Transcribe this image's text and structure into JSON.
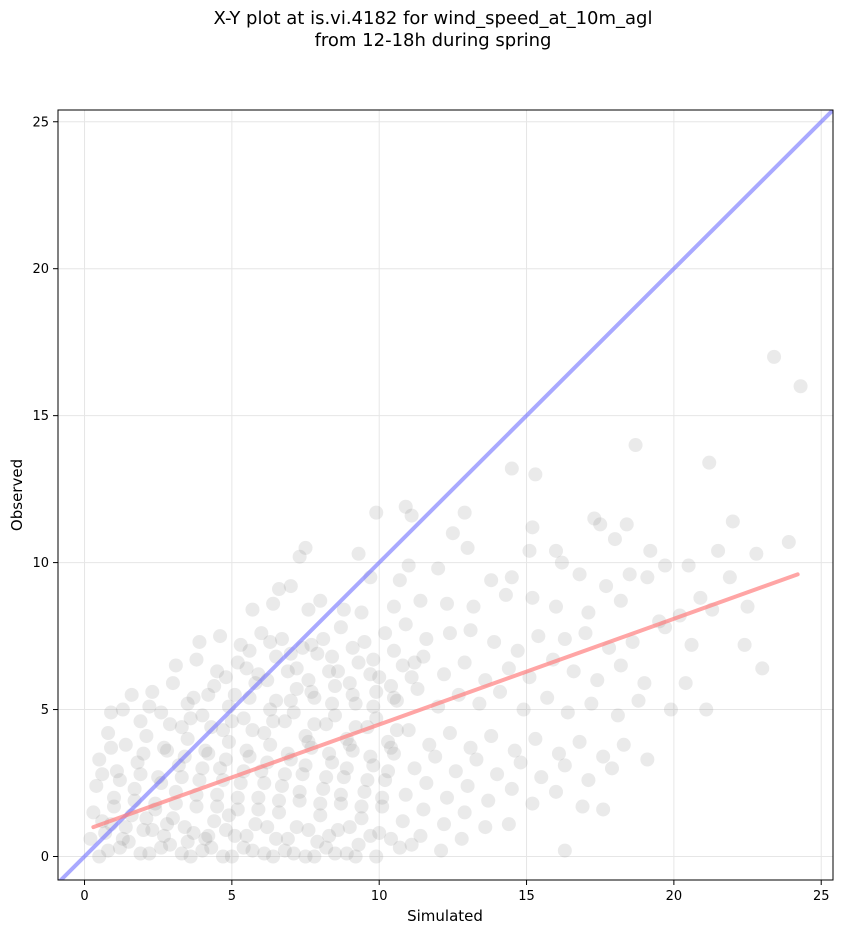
{
  "title": {
    "line1": "X-Y plot at is.vi.4182 for wind_speed_at_10m_agl",
    "line2": "from 12-18h during spring"
  },
  "chart_data": {
    "type": "scatter",
    "title": "X-Y plot at is.vi.4182 for wind_speed_at_10m_agl\nfrom 12-18h during spring",
    "xlabel": "Simulated",
    "ylabel": "Observed",
    "xlim": [
      -0.9,
      25.4
    ],
    "ylim": [
      -0.8,
      25.4
    ],
    "xticks": [
      0,
      5,
      10,
      15,
      20,
      25
    ],
    "yticks": [
      0,
      5,
      10,
      15,
      20,
      25
    ],
    "grid": true,
    "reference_line": {
      "kind": "1:1",
      "color": "#6f6fff",
      "from": [
        -0.9,
        -0.9
      ],
      "to": [
        25.4,
        25.4
      ]
    },
    "regression_line": {
      "color": "#ff7f7f",
      "from": [
        0.3,
        1.0
      ],
      "to": [
        24.2,
        9.6
      ]
    },
    "marker_color": "#808080",
    "points": [
      [
        23.4,
        17.0
      ],
      [
        24.3,
        16.0
      ],
      [
        18.7,
        14.0
      ],
      [
        14.5,
        13.2
      ],
      [
        21.2,
        13.4
      ],
      [
        15.3,
        13.0
      ],
      [
        10.9,
        11.9
      ],
      [
        12.9,
        11.7
      ],
      [
        9.9,
        11.7
      ],
      [
        22.0,
        11.4
      ],
      [
        17.3,
        11.5
      ],
      [
        15.2,
        11.2
      ],
      [
        18.4,
        11.3
      ],
      [
        12.5,
        11.0
      ],
      [
        17.5,
        11.3
      ],
      [
        11.1,
        11.6
      ],
      [
        7.5,
        10.5
      ],
      [
        7.3,
        10.2
      ],
      [
        9.3,
        10.3
      ],
      [
        13.0,
        10.5
      ],
      [
        15.1,
        10.4
      ],
      [
        16.2,
        10.0
      ],
      [
        19.2,
        10.4
      ],
      [
        16.0,
        10.4
      ],
      [
        18.0,
        10.8
      ],
      [
        20.5,
        9.9
      ],
      [
        21.5,
        10.4
      ],
      [
        22.8,
        10.3
      ],
      [
        23.9,
        10.7
      ],
      [
        19.7,
        9.9
      ],
      [
        12.0,
        9.8
      ],
      [
        11.0,
        9.9
      ],
      [
        9.7,
        9.5
      ],
      [
        10.7,
        9.4
      ],
      [
        13.8,
        9.4
      ],
      [
        14.5,
        9.5
      ],
      [
        16.8,
        9.6
      ],
      [
        17.7,
        9.2
      ],
      [
        18.5,
        9.6
      ],
      [
        19.1,
        9.5
      ],
      [
        20.9,
        8.8
      ],
      [
        21.9,
        9.5
      ],
      [
        22.5,
        8.5
      ],
      [
        6.6,
        9.1
      ],
      [
        7.0,
        9.2
      ],
      [
        8.0,
        8.7
      ],
      [
        5.7,
        8.4
      ],
      [
        6.4,
        8.6
      ],
      [
        7.6,
        8.4
      ],
      [
        8.8,
        8.4
      ],
      [
        9.4,
        8.3
      ],
      [
        10.5,
        8.5
      ],
      [
        11.4,
        8.7
      ],
      [
        12.3,
        8.6
      ],
      [
        13.2,
        8.5
      ],
      [
        14.3,
        8.9
      ],
      [
        15.2,
        8.8
      ],
      [
        16.0,
        8.5
      ],
      [
        17.1,
        8.3
      ],
      [
        18.2,
        8.7
      ],
      [
        19.5,
        8.0
      ],
      [
        20.2,
        8.2
      ],
      [
        21.3,
        8.4
      ],
      [
        3.9,
        7.3
      ],
      [
        4.6,
        7.5
      ],
      [
        5.3,
        7.2
      ],
      [
        6.0,
        7.6
      ],
      [
        6.7,
        7.4
      ],
      [
        7.4,
        7.1
      ],
      [
        8.1,
        7.4
      ],
      [
        8.7,
        7.8
      ],
      [
        9.5,
        7.3
      ],
      [
        10.2,
        7.6
      ],
      [
        10.9,
        7.9
      ],
      [
        11.6,
        7.4
      ],
      [
        12.4,
        7.6
      ],
      [
        13.1,
        7.7
      ],
      [
        13.9,
        7.3
      ],
      [
        14.7,
        7.0
      ],
      [
        15.4,
        7.5
      ],
      [
        16.3,
        7.4
      ],
      [
        17.0,
        7.6
      ],
      [
        17.8,
        7.1
      ],
      [
        18.6,
        7.3
      ],
      [
        19.7,
        7.8
      ],
      [
        20.6,
        7.2
      ],
      [
        22.4,
        7.2
      ],
      [
        23.0,
        6.4
      ],
      [
        3.1,
        6.5
      ],
      [
        3.8,
        6.7
      ],
      [
        4.5,
        6.3
      ],
      [
        5.2,
        6.6
      ],
      [
        5.9,
        6.2
      ],
      [
        6.5,
        6.8
      ],
      [
        7.2,
        6.4
      ],
      [
        7.9,
        6.9
      ],
      [
        8.6,
        6.3
      ],
      [
        9.3,
        6.6
      ],
      [
        10.0,
        6.1
      ],
      [
        10.8,
        6.5
      ],
      [
        11.5,
        6.8
      ],
      [
        12.2,
        6.2
      ],
      [
        12.9,
        6.6
      ],
      [
        13.6,
        6.0
      ],
      [
        14.4,
        6.4
      ],
      [
        15.1,
        6.1
      ],
      [
        15.9,
        6.7
      ],
      [
        16.6,
        6.3
      ],
      [
        17.4,
        6.0
      ],
      [
        18.2,
        6.5
      ],
      [
        19.0,
        5.9
      ],
      [
        20.4,
        5.9
      ],
      [
        2.3,
        5.6
      ],
      [
        3.0,
        5.9
      ],
      [
        3.7,
        5.4
      ],
      [
        4.4,
        5.8
      ],
      [
        5.1,
        5.5
      ],
      [
        5.8,
        5.9
      ],
      [
        6.5,
        5.3
      ],
      [
        7.2,
        5.7
      ],
      [
        7.8,
        5.4
      ],
      [
        8.5,
        5.8
      ],
      [
        9.2,
        5.2
      ],
      [
        9.9,
        5.6
      ],
      [
        10.6,
        5.3
      ],
      [
        11.3,
        5.7
      ],
      [
        12.0,
        5.1
      ],
      [
        12.7,
        5.5
      ],
      [
        13.4,
        5.2
      ],
      [
        14.1,
        5.6
      ],
      [
        14.9,
        5.0
      ],
      [
        15.7,
        5.4
      ],
      [
        16.4,
        4.9
      ],
      [
        17.2,
        5.2
      ],
      [
        18.1,
        4.8
      ],
      [
        18.8,
        5.3
      ],
      [
        19.9,
        5.0
      ],
      [
        21.1,
        5.0
      ],
      [
        1.3,
        5.0
      ],
      [
        1.9,
        4.6
      ],
      [
        2.6,
        4.9
      ],
      [
        3.3,
        4.4
      ],
      [
        4.0,
        4.8
      ],
      [
        4.7,
        4.3
      ],
      [
        5.4,
        4.7
      ],
      [
        6.1,
        4.2
      ],
      [
        6.8,
        4.6
      ],
      [
        7.5,
        4.1
      ],
      [
        8.2,
        4.5
      ],
      [
        8.9,
        4.0
      ],
      [
        9.6,
        4.4
      ],
      [
        10.3,
        3.9
      ],
      [
        11.0,
        4.3
      ],
      [
        11.7,
        3.8
      ],
      [
        12.4,
        4.2
      ],
      [
        13.1,
        3.7
      ],
      [
        13.8,
        4.1
      ],
      [
        14.6,
        3.6
      ],
      [
        15.3,
        4.0
      ],
      [
        16.1,
        3.5
      ],
      [
        16.8,
        3.9
      ],
      [
        17.6,
        3.4
      ],
      [
        18.3,
        3.8
      ],
      [
        19.1,
        3.3
      ],
      [
        0.8,
        4.2
      ],
      [
        1.4,
        3.8
      ],
      [
        2.1,
        4.1
      ],
      [
        2.8,
        3.6
      ],
      [
        3.5,
        4.0
      ],
      [
        4.2,
        3.5
      ],
      [
        4.9,
        3.9
      ],
      [
        5.6,
        3.4
      ],
      [
        6.3,
        3.8
      ],
      [
        7.0,
        3.3
      ],
      [
        7.7,
        3.7
      ],
      [
        8.4,
        3.2
      ],
      [
        9.1,
        3.6
      ],
      [
        9.8,
        3.1
      ],
      [
        10.5,
        3.5
      ],
      [
        11.2,
        3.0
      ],
      [
        11.9,
        3.4
      ],
      [
        12.6,
        2.9
      ],
      [
        13.3,
        3.3
      ],
      [
        14.0,
        2.8
      ],
      [
        14.8,
        3.2
      ],
      [
        15.5,
        2.7
      ],
      [
        16.3,
        3.1
      ],
      [
        17.1,
        2.6
      ],
      [
        17.9,
        3.0
      ],
      [
        0.5,
        3.3
      ],
      [
        1.1,
        2.9
      ],
      [
        1.8,
        3.2
      ],
      [
        2.5,
        2.7
      ],
      [
        3.2,
        3.1
      ],
      [
        3.9,
        2.6
      ],
      [
        4.6,
        3.0
      ],
      [
        5.3,
        2.5
      ],
      [
        6.0,
        2.9
      ],
      [
        6.7,
        2.4
      ],
      [
        7.4,
        2.8
      ],
      [
        8.1,
        2.3
      ],
      [
        8.8,
        2.7
      ],
      [
        9.5,
        2.2
      ],
      [
        10.2,
        2.6
      ],
      [
        10.9,
        2.1
      ],
      [
        11.6,
        2.5
      ],
      [
        12.3,
        2.0
      ],
      [
        13.0,
        2.4
      ],
      [
        13.7,
        1.9
      ],
      [
        14.5,
        2.3
      ],
      [
        15.2,
        1.8
      ],
      [
        16.0,
        2.2
      ],
      [
        16.9,
        1.7
      ],
      [
        17.6,
        1.6
      ],
      [
        0.4,
        2.4
      ],
      [
        1.0,
        2.0
      ],
      [
        1.7,
        2.3
      ],
      [
        2.4,
        1.8
      ],
      [
        3.1,
        2.2
      ],
      [
        3.8,
        1.7
      ],
      [
        4.5,
        2.1
      ],
      [
        5.2,
        1.6
      ],
      [
        5.9,
        2.0
      ],
      [
        6.6,
        1.5
      ],
      [
        7.3,
        1.9
      ],
      [
        8.0,
        1.4
      ],
      [
        8.7,
        1.8
      ],
      [
        9.4,
        1.3
      ],
      [
        10.1,
        1.7
      ],
      [
        10.8,
        1.2
      ],
      [
        11.5,
        1.6
      ],
      [
        12.2,
        1.1
      ],
      [
        12.9,
        1.5
      ],
      [
        13.6,
        1.0
      ],
      [
        14.4,
        1.1
      ],
      [
        0.3,
        1.5
      ],
      [
        0.9,
        1.1
      ],
      [
        1.6,
        1.4
      ],
      [
        2.3,
        0.9
      ],
      [
        3.0,
        1.3
      ],
      [
        3.7,
        0.8
      ],
      [
        4.4,
        1.2
      ],
      [
        5.1,
        0.7
      ],
      [
        5.8,
        1.1
      ],
      [
        6.5,
        0.6
      ],
      [
        7.2,
        1.0
      ],
      [
        7.9,
        0.5
      ],
      [
        8.6,
        0.9
      ],
      [
        9.3,
        0.4
      ],
      [
        10.0,
        0.8
      ],
      [
        10.7,
        0.3
      ],
      [
        11.4,
        0.7
      ],
      [
        12.1,
        0.2
      ],
      [
        12.8,
        0.6
      ],
      [
        0.2,
        0.6
      ],
      [
        0.8,
        0.2
      ],
      [
        1.5,
        0.5
      ],
      [
        2.2,
        0.1
      ],
      [
        2.9,
        0.4
      ],
      [
        3.6,
        0.0
      ],
      [
        4.3,
        0.3
      ],
      [
        5.0,
        0.0
      ],
      [
        5.7,
        0.2
      ],
      [
        6.4,
        0.0
      ],
      [
        7.1,
        0.1
      ],
      [
        7.8,
        0.0
      ],
      [
        8.5,
        0.1
      ],
      [
        9.2,
        0.0
      ],
      [
        9.9,
        0.0
      ],
      [
        16.3,
        0.2
      ],
      [
        10.4,
        0.6
      ],
      [
        11.1,
        0.4
      ],
      [
        0.5,
        0.0
      ],
      [
        1.2,
        0.3
      ],
      [
        1.9,
        0.1
      ],
      [
        2.6,
        0.3
      ],
      [
        3.3,
        0.1
      ],
      [
        4.0,
        0.2
      ],
      [
        4.7,
        0.0
      ],
      [
        5.4,
        0.3
      ],
      [
        6.1,
        0.1
      ],
      [
        6.8,
        0.2
      ],
      [
        7.5,
        0.0
      ],
      [
        8.2,
        0.3
      ],
      [
        8.9,
        0.1
      ],
      [
        0.7,
        0.8
      ],
      [
        1.3,
        0.6
      ],
      [
        2.0,
        0.9
      ],
      [
        2.7,
        0.7
      ],
      [
        3.4,
        1.0
      ],
      [
        4.1,
        0.6
      ],
      [
        4.8,
        0.9
      ],
      [
        5.5,
        0.7
      ],
      [
        6.2,
        1.0
      ],
      [
        6.9,
        0.6
      ],
      [
        7.6,
        0.9
      ],
      [
        8.3,
        0.7
      ],
      [
        9.0,
        1.0
      ],
      [
        9.7,
        0.7
      ],
      [
        1.0,
        1.7
      ],
      [
        1.7,
        1.9
      ],
      [
        2.4,
        1.6
      ],
      [
        3.1,
        1.8
      ],
      [
        3.8,
        2.1
      ],
      [
        4.5,
        1.7
      ],
      [
        5.2,
        2.0
      ],
      [
        5.9,
        1.6
      ],
      [
        6.6,
        1.9
      ],
      [
        7.3,
        2.2
      ],
      [
        8.0,
        1.8
      ],
      [
        8.7,
        2.1
      ],
      [
        9.4,
        1.7
      ],
      [
        10.1,
        2.0
      ],
      [
        1.2,
        2.6
      ],
      [
        1.9,
        2.8
      ],
      [
        2.6,
        2.5
      ],
      [
        3.3,
        2.7
      ],
      [
        4.0,
        3.0
      ],
      [
        4.7,
        2.6
      ],
      [
        5.4,
        2.9
      ],
      [
        6.1,
        2.5
      ],
      [
        6.8,
        2.8
      ],
      [
        7.5,
        3.1
      ],
      [
        8.2,
        2.7
      ],
      [
        8.9,
        3.0
      ],
      [
        9.6,
        2.6
      ],
      [
        10.3,
        2.9
      ],
      [
        2.0,
        3.5
      ],
      [
        2.7,
        3.7
      ],
      [
        3.4,
        3.4
      ],
      [
        4.1,
        3.6
      ],
      [
        4.8,
        3.3
      ],
      [
        5.5,
        3.6
      ],
      [
        6.2,
        3.2
      ],
      [
        6.9,
        3.5
      ],
      [
        7.6,
        3.9
      ],
      [
        8.3,
        3.5
      ],
      [
        9.0,
        3.8
      ],
      [
        9.7,
        3.4
      ],
      [
        10.4,
        3.7
      ],
      [
        2.9,
        4.5
      ],
      [
        3.6,
        4.7
      ],
      [
        4.3,
        4.4
      ],
      [
        5.0,
        4.6
      ],
      [
        5.7,
        4.3
      ],
      [
        6.4,
        4.6
      ],
      [
        7.1,
        4.9
      ],
      [
        7.8,
        4.5
      ],
      [
        8.5,
        4.8
      ],
      [
        9.2,
        4.4
      ],
      [
        9.9,
        4.7
      ],
      [
        10.6,
        4.3
      ],
      [
        3.5,
        5.2
      ],
      [
        4.2,
        5.5
      ],
      [
        4.9,
        5.1
      ],
      [
        5.6,
        5.4
      ],
      [
        6.3,
        5.0
      ],
      [
        7.0,
        5.3
      ],
      [
        7.7,
        5.6
      ],
      [
        8.4,
        5.2
      ],
      [
        9.1,
        5.5
      ],
      [
        9.8,
        5.1
      ],
      [
        10.5,
        5.4
      ],
      [
        4.8,
        6.1
      ],
      [
        5.5,
        6.4
      ],
      [
        6.2,
        6.0
      ],
      [
        6.9,
        6.3
      ],
      [
        7.6,
        6.0
      ],
      [
        8.3,
        6.3
      ],
      [
        9.0,
        5.9
      ],
      [
        9.7,
        6.2
      ],
      [
        10.4,
        5.8
      ],
      [
        11.1,
        6.1
      ],
      [
        5.6,
        7.0
      ],
      [
        6.3,
        7.3
      ],
      [
        7.0,
        6.9
      ],
      [
        7.7,
        7.2
      ],
      [
        8.4,
        6.8
      ],
      [
        9.1,
        7.1
      ],
      [
        9.8,
        6.7
      ],
      [
        10.5,
        7.0
      ],
      [
        11.2,
        6.6
      ],
      [
        0.6,
        1.2
      ],
      [
        1.4,
        1.0
      ],
      [
        2.1,
        1.3
      ],
      [
        2.8,
        1.1
      ],
      [
        3.5,
        0.5
      ],
      [
        4.2,
        0.7
      ],
      [
        4.9,
        1.4
      ],
      [
        0.9,
        3.7
      ],
      [
        0.6,
        2.8
      ],
      [
        0.9,
        4.9
      ],
      [
        1.6,
        5.5
      ],
      [
        2.2,
        5.1
      ]
    ]
  }
}
